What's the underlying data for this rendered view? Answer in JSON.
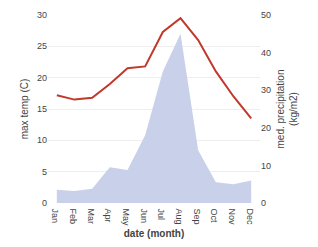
{
  "chart_data": {
    "type": "line",
    "xlabel": "date (month)",
    "ylabel": "max temp (C)",
    "y2label": "med. precipitation\n(kg/m2)",
    "categories": [
      "Jan",
      "Feb",
      "Mar",
      "Apr",
      "May",
      "Jun",
      "Jul",
      "Aug",
      "Sep",
      "Oct",
      "Nov",
      "Dec"
    ],
    "series": [
      {
        "type": "area",
        "axis": "y2",
        "color": "#c8d0ea",
        "values": [
          3.5,
          3.2,
          3.8,
          9.5,
          8.8,
          18.0,
          35.0,
          45.0,
          14.0,
          5.5,
          5.0,
          6.0
        ]
      },
      {
        "type": "line",
        "color": "#c0392b",
        "values": [
          17.2,
          16.5,
          16.8,
          19.0,
          21.5,
          21.8,
          27.3,
          29.5,
          26.0,
          21.0,
          17.0,
          13.5
        ]
      }
    ],
    "ylim": [
      0,
      30
    ],
    "yticks": [
      0,
      5,
      10,
      15,
      20,
      25,
      30
    ],
    "y2lim": [
      0,
      50
    ],
    "y2ticks": [
      0,
      10,
      20,
      30,
      40,
      50
    ],
    "grid": true
  }
}
